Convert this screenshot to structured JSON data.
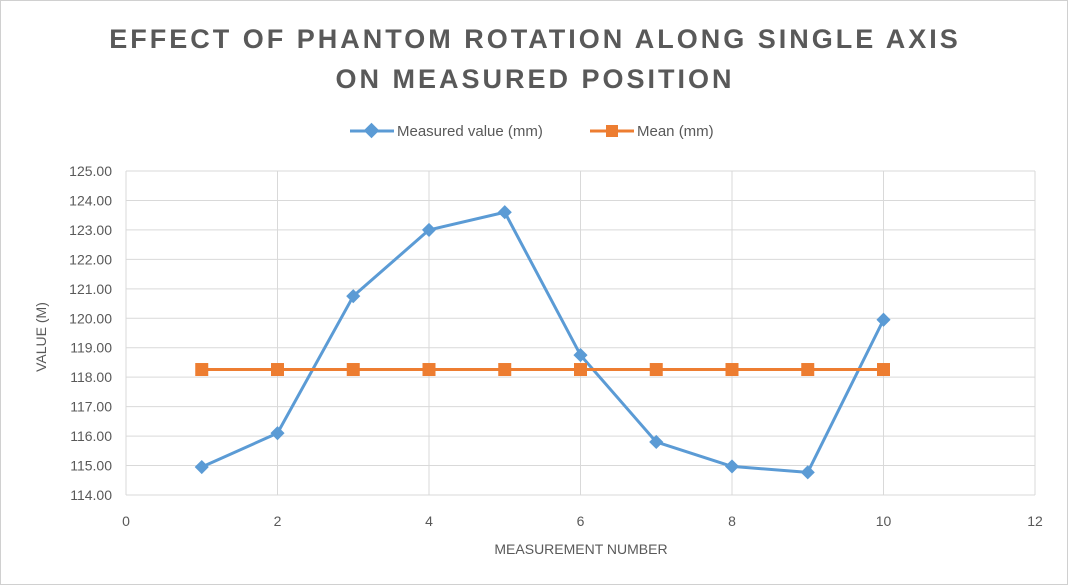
{
  "chart_data": {
    "type": "scatter",
    "title_line1": "EFFECT OF PHANTOM ROTATION ALONG SINGLE AXIS",
    "title_line2": "ON MEASURED POSITION",
    "xlabel": "MEASUREMENT NUMBER",
    "ylabel": "VALUE (M)",
    "xlim": [
      0,
      12
    ],
    "ylim": [
      114,
      125
    ],
    "xticks": [
      0,
      2,
      4,
      6,
      8,
      10,
      12
    ],
    "yticks": [
      "114.00",
      "115.00",
      "116.00",
      "117.00",
      "118.00",
      "119.00",
      "120.00",
      "121.00",
      "122.00",
      "123.00",
      "124.00",
      "125.00"
    ],
    "grid": true,
    "legend_position": "top",
    "series": [
      {
        "name": "Measured value (mm)",
        "color": "#5b9bd5",
        "marker": "diamond",
        "x": [
          1,
          2,
          3,
          4,
          5,
          6,
          7,
          8,
          9,
          10
        ],
        "y": [
          114.95,
          116.1,
          120.75,
          123.0,
          123.6,
          118.75,
          115.8,
          114.97,
          114.77,
          119.95
        ]
      },
      {
        "name": "Mean (mm)",
        "color": "#ed7d31",
        "marker": "square",
        "x": [
          1,
          2,
          3,
          4,
          5,
          6,
          7,
          8,
          9,
          10
        ],
        "y": [
          118.26,
          118.26,
          118.26,
          118.26,
          118.26,
          118.26,
          118.26,
          118.26,
          118.26,
          118.26
        ]
      }
    ]
  }
}
